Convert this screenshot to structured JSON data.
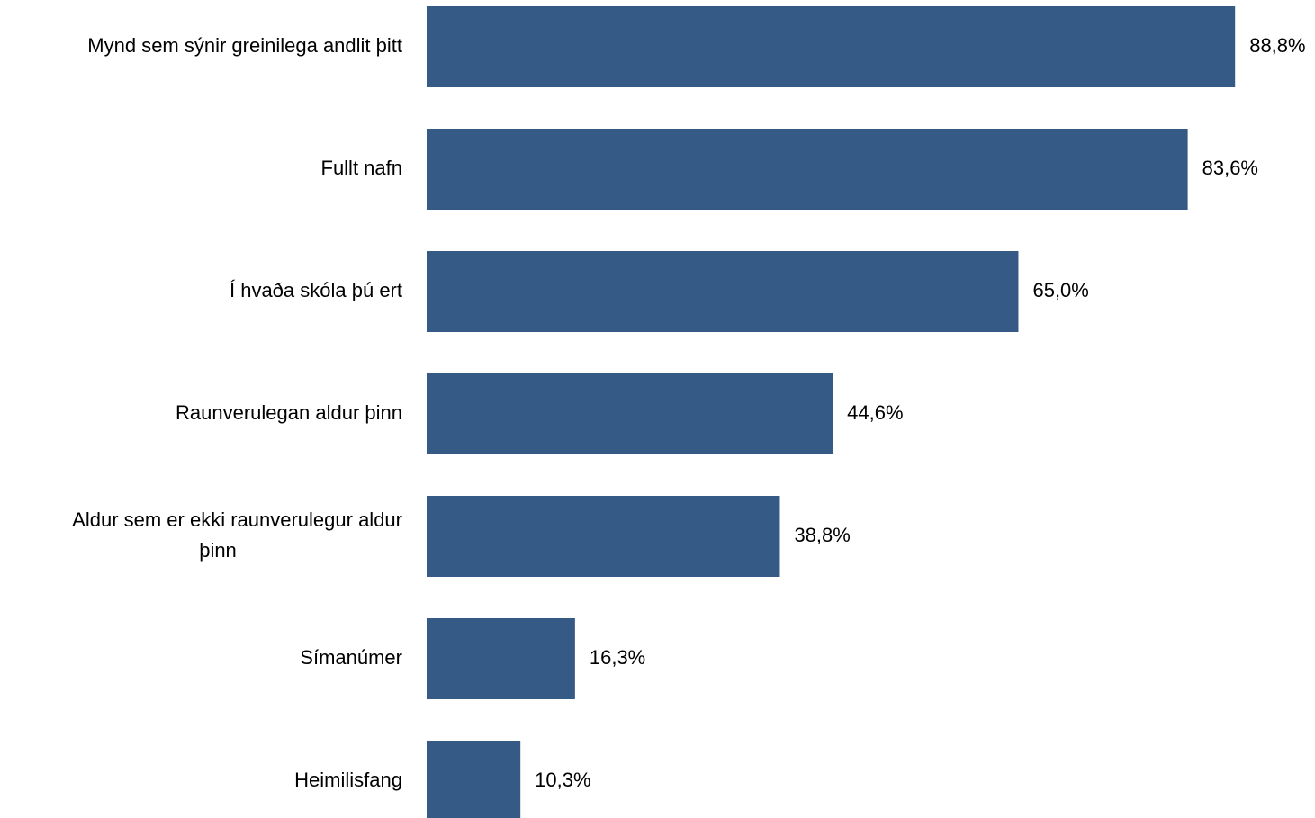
{
  "chart_data": {
    "type": "bar",
    "orientation": "horizontal",
    "categories": [
      "Mynd sem sýnir greinilega andlit þitt",
      "Fullt nafn",
      "Í hvaða skóla þú ert",
      "Raunverulegan aldur þinn",
      "Aldur sem er ekki raunverulegur aldur þinn",
      "Símanúmer",
      "Heimilisfang"
    ],
    "category_label_lines": [
      [
        "Mynd sem sýnir greinilega andlit þitt"
      ],
      [
        "Fullt nafn"
      ],
      [
        "Í hvaða skóla þú ert"
      ],
      [
        "Raunverulegan aldur þinn"
      ],
      [
        "Aldur sem er ekki raunverulegur aldur",
        "þinn"
      ],
      [
        "Símanúmer"
      ],
      [
        "Heimilisfang"
      ]
    ],
    "values": [
      88.8,
      83.6,
      65.0,
      44.6,
      38.8,
      16.3,
      10.3
    ],
    "value_labels": [
      "88,8%",
      "83,6%",
      "65,0%",
      "44,6%",
      "38,8%",
      "16,3%",
      "10,3%"
    ],
    "xlim": [
      0,
      100
    ],
    "grid": false,
    "legend": "none",
    "bar_color": "#355A86"
  }
}
